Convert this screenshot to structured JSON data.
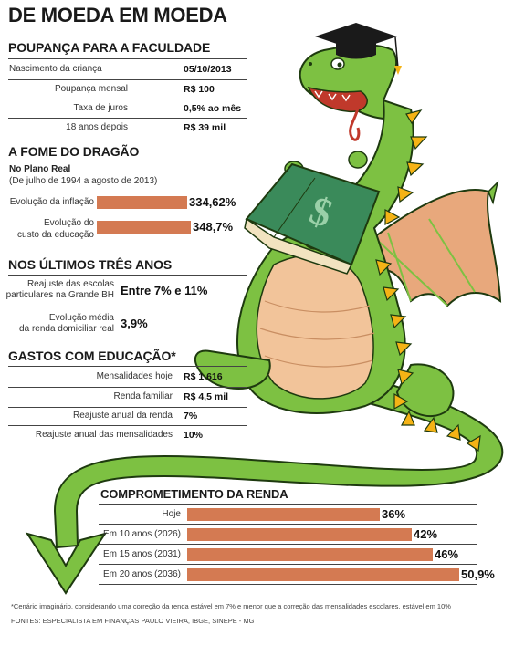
{
  "title": "DE MOEDA EM MOEDA",
  "savings": {
    "heading": "POUPANÇA PARA A FACULDADE",
    "rows": [
      {
        "label": "Nascimento da criança",
        "value": "05/10/2013"
      },
      {
        "label": "Poupança mensal",
        "value": "R$ 100"
      },
      {
        "label": "Taxa de juros",
        "value": "0,5% ao mês"
      },
      {
        "label": "18 anos depois",
        "value": "R$ 39 mil"
      }
    ]
  },
  "hunger": {
    "heading": "A FOME DO DRAGÃO",
    "subheading": "No Plano Real",
    "period": "(De julho de 1994 a agosto de 2013)"
  },
  "last_three": {
    "heading": "NOS ÚLTIMOS TRÊS ANOS",
    "rows": [
      {
        "label": "Reajuste das escolas particulares na Grande BH",
        "label_lines": [
          "Reajuste das escolas",
          "particulares na Grande BH"
        ],
        "value": "Entre 7% e 11%"
      },
      {
        "label": "Evolução média da renda domiciliar real",
        "label_lines": [
          "Evolução média",
          "da renda domiciliar real"
        ],
        "value": "3,9%"
      }
    ]
  },
  "expenses": {
    "heading": "GASTOS COM EDUCAÇÃO*",
    "rows": [
      {
        "label": "Mensalidades hoje",
        "value": "R$ 1.616"
      },
      {
        "label": "Renda familiar",
        "value": "R$ 4,5 mil"
      },
      {
        "label": "Reajuste anual da renda",
        "value": "7%"
      },
      {
        "label": "Reajuste anual das mensalidades",
        "value": "10%"
      }
    ]
  },
  "chart_data": [
    {
      "type": "bar",
      "orientation": "horizontal",
      "categories": [
        "Evolução da inflação",
        "Evolução do custo da educação"
      ],
      "category_lines": [
        [
          "Evolução da inflação"
        ],
        [
          "Evolução do",
          "custo da educação"
        ]
      ],
      "values": [
        334.62,
        348.7
      ],
      "labels": [
        "334,62%",
        "348,7%"
      ],
      "color": "#d47a52"
    },
    {
      "type": "bar",
      "orientation": "horizontal",
      "title": "COMPROMETIMENTO DA RENDA",
      "categories": [
        "Hoje",
        "Em 10 anos (2026)",
        "Em 15 anos (2031)",
        "Em 20 anos (2036)"
      ],
      "values": [
        36,
        42,
        46,
        50.9
      ],
      "labels": [
        "36%",
        "42%",
        "46%",
        "50,9%"
      ],
      "color": "#d47a52"
    }
  ],
  "footnote": "*Cenário imaginário, considerando uma correção da renda estável em 7% e menor que a correção das mensalidades escolares, estável em 10%",
  "sources": "FONTES: ESPECIALISTA EM FINANÇAS PAULO VIEIRA, IBGE, SINEPE - MG",
  "book_symbol": "$",
  "colors": {
    "bar": "#d47a52",
    "dragon_green": "#7dc142",
    "dragon_belly": "#f2c49a",
    "spikes": "#f5b315",
    "wing": "#e8a87c"
  }
}
